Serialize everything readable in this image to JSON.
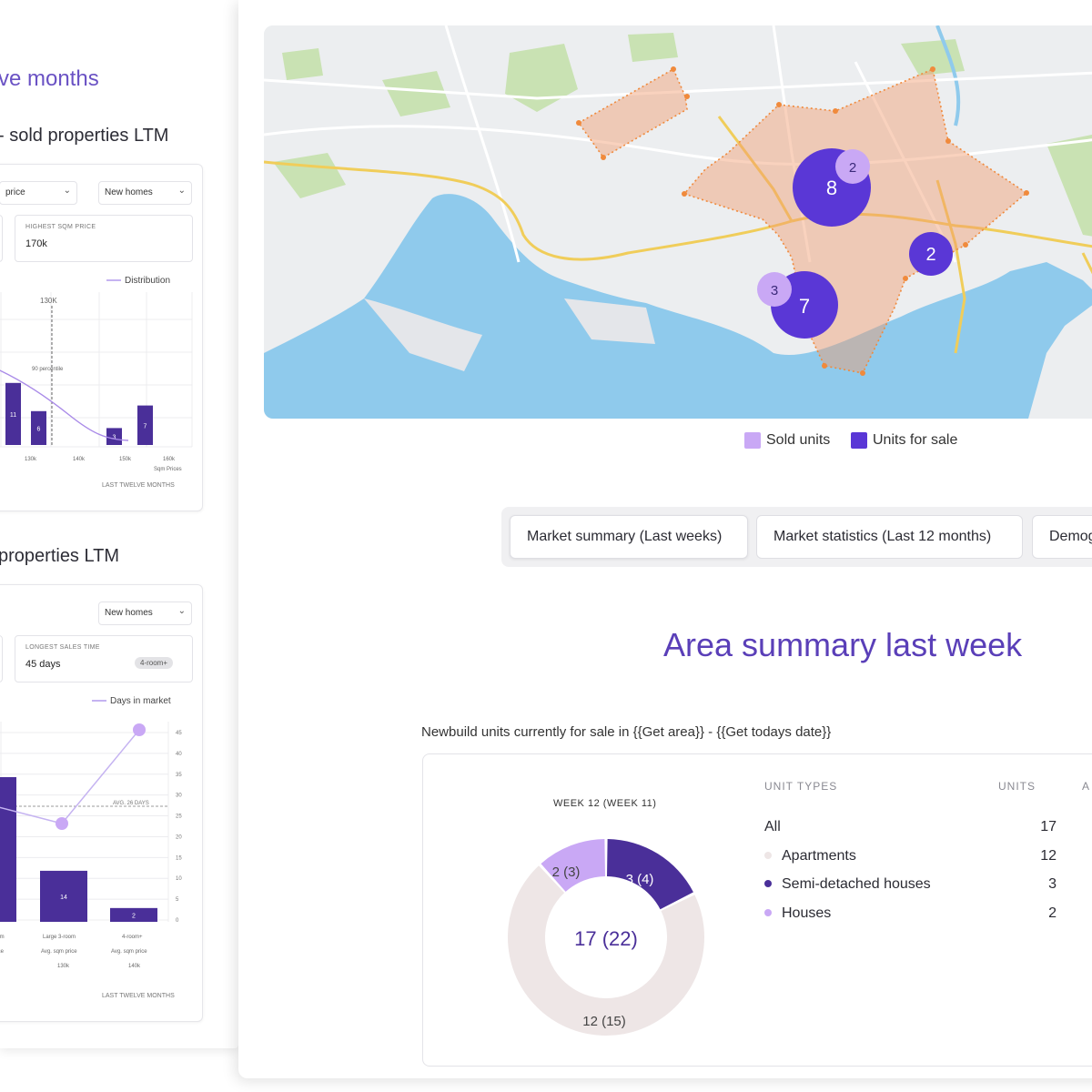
{
  "left_panel": {
    "heading": "ve months",
    "section1": {
      "title": "- sold properties LTM",
      "dropdown_a": "price",
      "dropdown_b": "New homes",
      "stat_label": "HIGHEST SQM PRICE",
      "stat_value": "170k",
      "legend": "Distribution",
      "marker_label": "130K",
      "percentile_label": "90 percentile",
      "bars": [
        {
          "label": "11",
          "value": 11
        },
        {
          "label": "6",
          "value": 6
        },
        {
          "label": "3",
          "value": 3
        },
        {
          "label": "7",
          "value": 7
        }
      ],
      "x_ticks": [
        "130k",
        "140k",
        "150k",
        "160k"
      ],
      "x_unit": "Sqm Prices",
      "footer": "LAST TWELVE MONTHS"
    },
    "section2": {
      "title": "properties LTM",
      "dropdown_b": "New homes",
      "stat_label": "LONGEST SALES TIME",
      "stat_value": "45 days",
      "stat_badge": "4-room+",
      "legend": "Days in market",
      "avg_label": "AVG. 26 DAYS",
      "y_ticks": [
        "45",
        "40",
        "35",
        "30",
        "25",
        "20",
        "15",
        "10",
        "5",
        "0"
      ],
      "bars": [
        {
          "label": "14",
          "value": 14
        },
        {
          "label": "2",
          "value": 2
        }
      ],
      "x_labels": [
        {
          "l1": "room",
          "l2": "price",
          "l3": ""
        },
        {
          "l1": "Large 3-room",
          "l2": "Avg. sqm price",
          "l3": "130k"
        },
        {
          "l1": "4-room+",
          "l2": "Avg. sqm price",
          "l3": "140k"
        }
      ],
      "footer": "LAST TWELVE MONTHS"
    }
  },
  "map": {
    "clusters": [
      {
        "label": "8",
        "kind": "for_sale"
      },
      {
        "label": "2",
        "kind": "sold"
      },
      {
        "label": "2",
        "kind": "for_sale"
      },
      {
        "label": "7",
        "kind": "for_sale"
      },
      {
        "label": "3",
        "kind": "sold"
      }
    ],
    "legend": {
      "sold": "Sold units",
      "for_sale": "Units for sale"
    }
  },
  "colors": {
    "sold": "#c9a8f5",
    "for_sale": "#5a37d6",
    "accent": "#5a3fb8",
    "apartments": "#eee6e6",
    "semi": "#4a2f99",
    "houses": "#c9a8f5"
  },
  "tabs": [
    {
      "label": "Market summary (Last weeks)"
    },
    {
      "label": "Market  statistics (Last 12 months)"
    },
    {
      "label": "Demog"
    }
  ],
  "area_summary": {
    "title": "Area summary last week",
    "subtitle": "Newbuild units currently for sale in {{Get area}} - {{Get todays date}}",
    "donut": {
      "week_label": "WEEK 12 (WEEK 11)",
      "center": "17 (22)",
      "segments": [
        {
          "name": "Apartments",
          "value": 12,
          "label": "12 (15)"
        },
        {
          "name": "Semi-detached houses",
          "value": 3,
          "label": "3 (4)"
        },
        {
          "name": "Houses",
          "value": 2,
          "label": "2 (3)"
        }
      ]
    },
    "table": {
      "headers": [
        "UNIT TYPES",
        "UNITS",
        "A"
      ],
      "rows": [
        {
          "label": "All",
          "units": "17"
        },
        {
          "label": "Apartments",
          "units": "12"
        },
        {
          "label": "Semi-detached houses",
          "units": "3"
        },
        {
          "label": "Houses",
          "units": "2"
        }
      ]
    }
  }
}
